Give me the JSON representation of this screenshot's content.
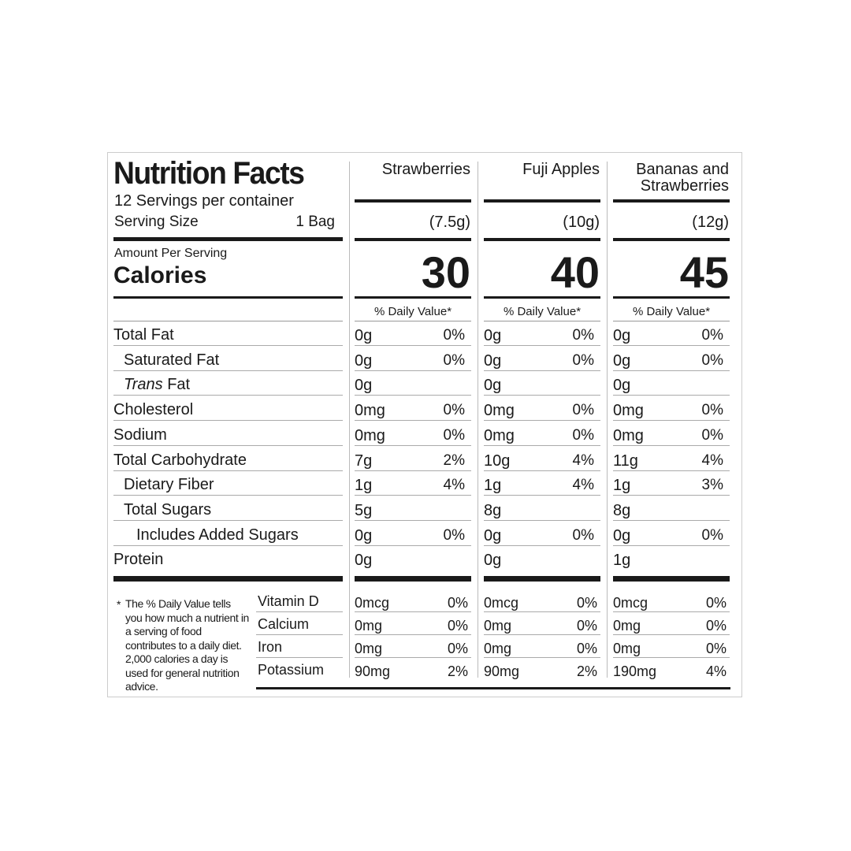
{
  "header": {
    "title": "Nutrition Facts",
    "servings": "12 Servings per container",
    "serving_size_label": "Serving Size",
    "serving_size": "1 Bag",
    "amount_label": "Amount Per Serving",
    "calories_label": "Calories",
    "daily_value_header": "% Daily Value*"
  },
  "columns": [
    {
      "name": "Strawberries",
      "serving": "(7.5g)",
      "calories": 30
    },
    {
      "name": "Fuji Apples",
      "serving": "(10g)",
      "calories": 40
    },
    {
      "name": "Bananas and Strawberries",
      "serving": "(12g)",
      "calories": 45
    }
  ],
  "nutrients": [
    {
      "label": "Total Fat",
      "indent": 0,
      "values": [
        [
          "0g",
          "0%"
        ],
        [
          "0g",
          "0%"
        ],
        [
          "0g",
          "0%"
        ]
      ]
    },
    {
      "label": "Saturated Fat",
      "indent": 1,
      "values": [
        [
          "0g",
          "0%"
        ],
        [
          "0g",
          "0%"
        ],
        [
          "0g",
          "0%"
        ]
      ]
    },
    {
      "italic": "Trans",
      "label": "Fat",
      "indent": 1,
      "values": [
        [
          "0g",
          null
        ],
        [
          "0g",
          null
        ],
        [
          "0g",
          null
        ]
      ]
    },
    {
      "label": "Cholesterol",
      "indent": 0,
      "values": [
        [
          "0mg",
          "0%"
        ],
        [
          "0mg",
          "0%"
        ],
        [
          "0mg",
          "0%"
        ]
      ]
    },
    {
      "label": "Sodium",
      "indent": 0,
      "values": [
        [
          "0mg",
          "0%"
        ],
        [
          "0mg",
          "0%"
        ],
        [
          "0mg",
          "0%"
        ]
      ]
    },
    {
      "label": "Total Carbohydrate",
      "indent": 0,
      "values": [
        [
          "7g",
          "2%"
        ],
        [
          "10g",
          "4%"
        ],
        [
          "11g",
          "4%"
        ]
      ]
    },
    {
      "label": "Dietary Fiber",
      "indent": 1,
      "values": [
        [
          "1g",
          "4%"
        ],
        [
          "1g",
          "4%"
        ],
        [
          "1g",
          "3%"
        ]
      ]
    },
    {
      "label": "Total Sugars",
      "indent": 1,
      "values": [
        [
          "5g",
          null
        ],
        [
          "8g",
          null
        ],
        [
          "8g",
          null
        ]
      ]
    },
    {
      "label": "Includes Added Sugars",
      "indent": 2,
      "values": [
        [
          "0g",
          "0%"
        ],
        [
          "0g",
          "0%"
        ],
        [
          "0g",
          "0%"
        ]
      ]
    },
    {
      "label": "Protein",
      "indent": 0,
      "values": [
        [
          "0g",
          null
        ],
        [
          "0g",
          null
        ],
        [
          "1g",
          null
        ]
      ]
    }
  ],
  "vitamins": [
    {
      "label": "Vitamin D",
      "values": [
        [
          "0mcg",
          "0%"
        ],
        [
          "0mcg",
          "0%"
        ],
        [
          "0mcg",
          "0%"
        ]
      ]
    },
    {
      "label": "Calcium",
      "values": [
        [
          "0mg",
          "0%"
        ],
        [
          "0mg",
          "0%"
        ],
        [
          "0mg",
          "0%"
        ]
      ]
    },
    {
      "label": "Iron",
      "values": [
        [
          "0mg",
          "0%"
        ],
        [
          "0mg",
          "0%"
        ],
        [
          "0mg",
          "0%"
        ]
      ]
    },
    {
      "label": "Potassium",
      "values": [
        [
          "90mg",
          "2%"
        ],
        [
          "90mg",
          "2%"
        ],
        [
          "190mg",
          "4%"
        ]
      ]
    }
  ],
  "footnote": {
    "marker": "*",
    "text": "The % Daily Value tells you how much a nutrient in a serving of food contributes to a daily diet. 2,000 calories a day is used for general nutrition advice."
  }
}
